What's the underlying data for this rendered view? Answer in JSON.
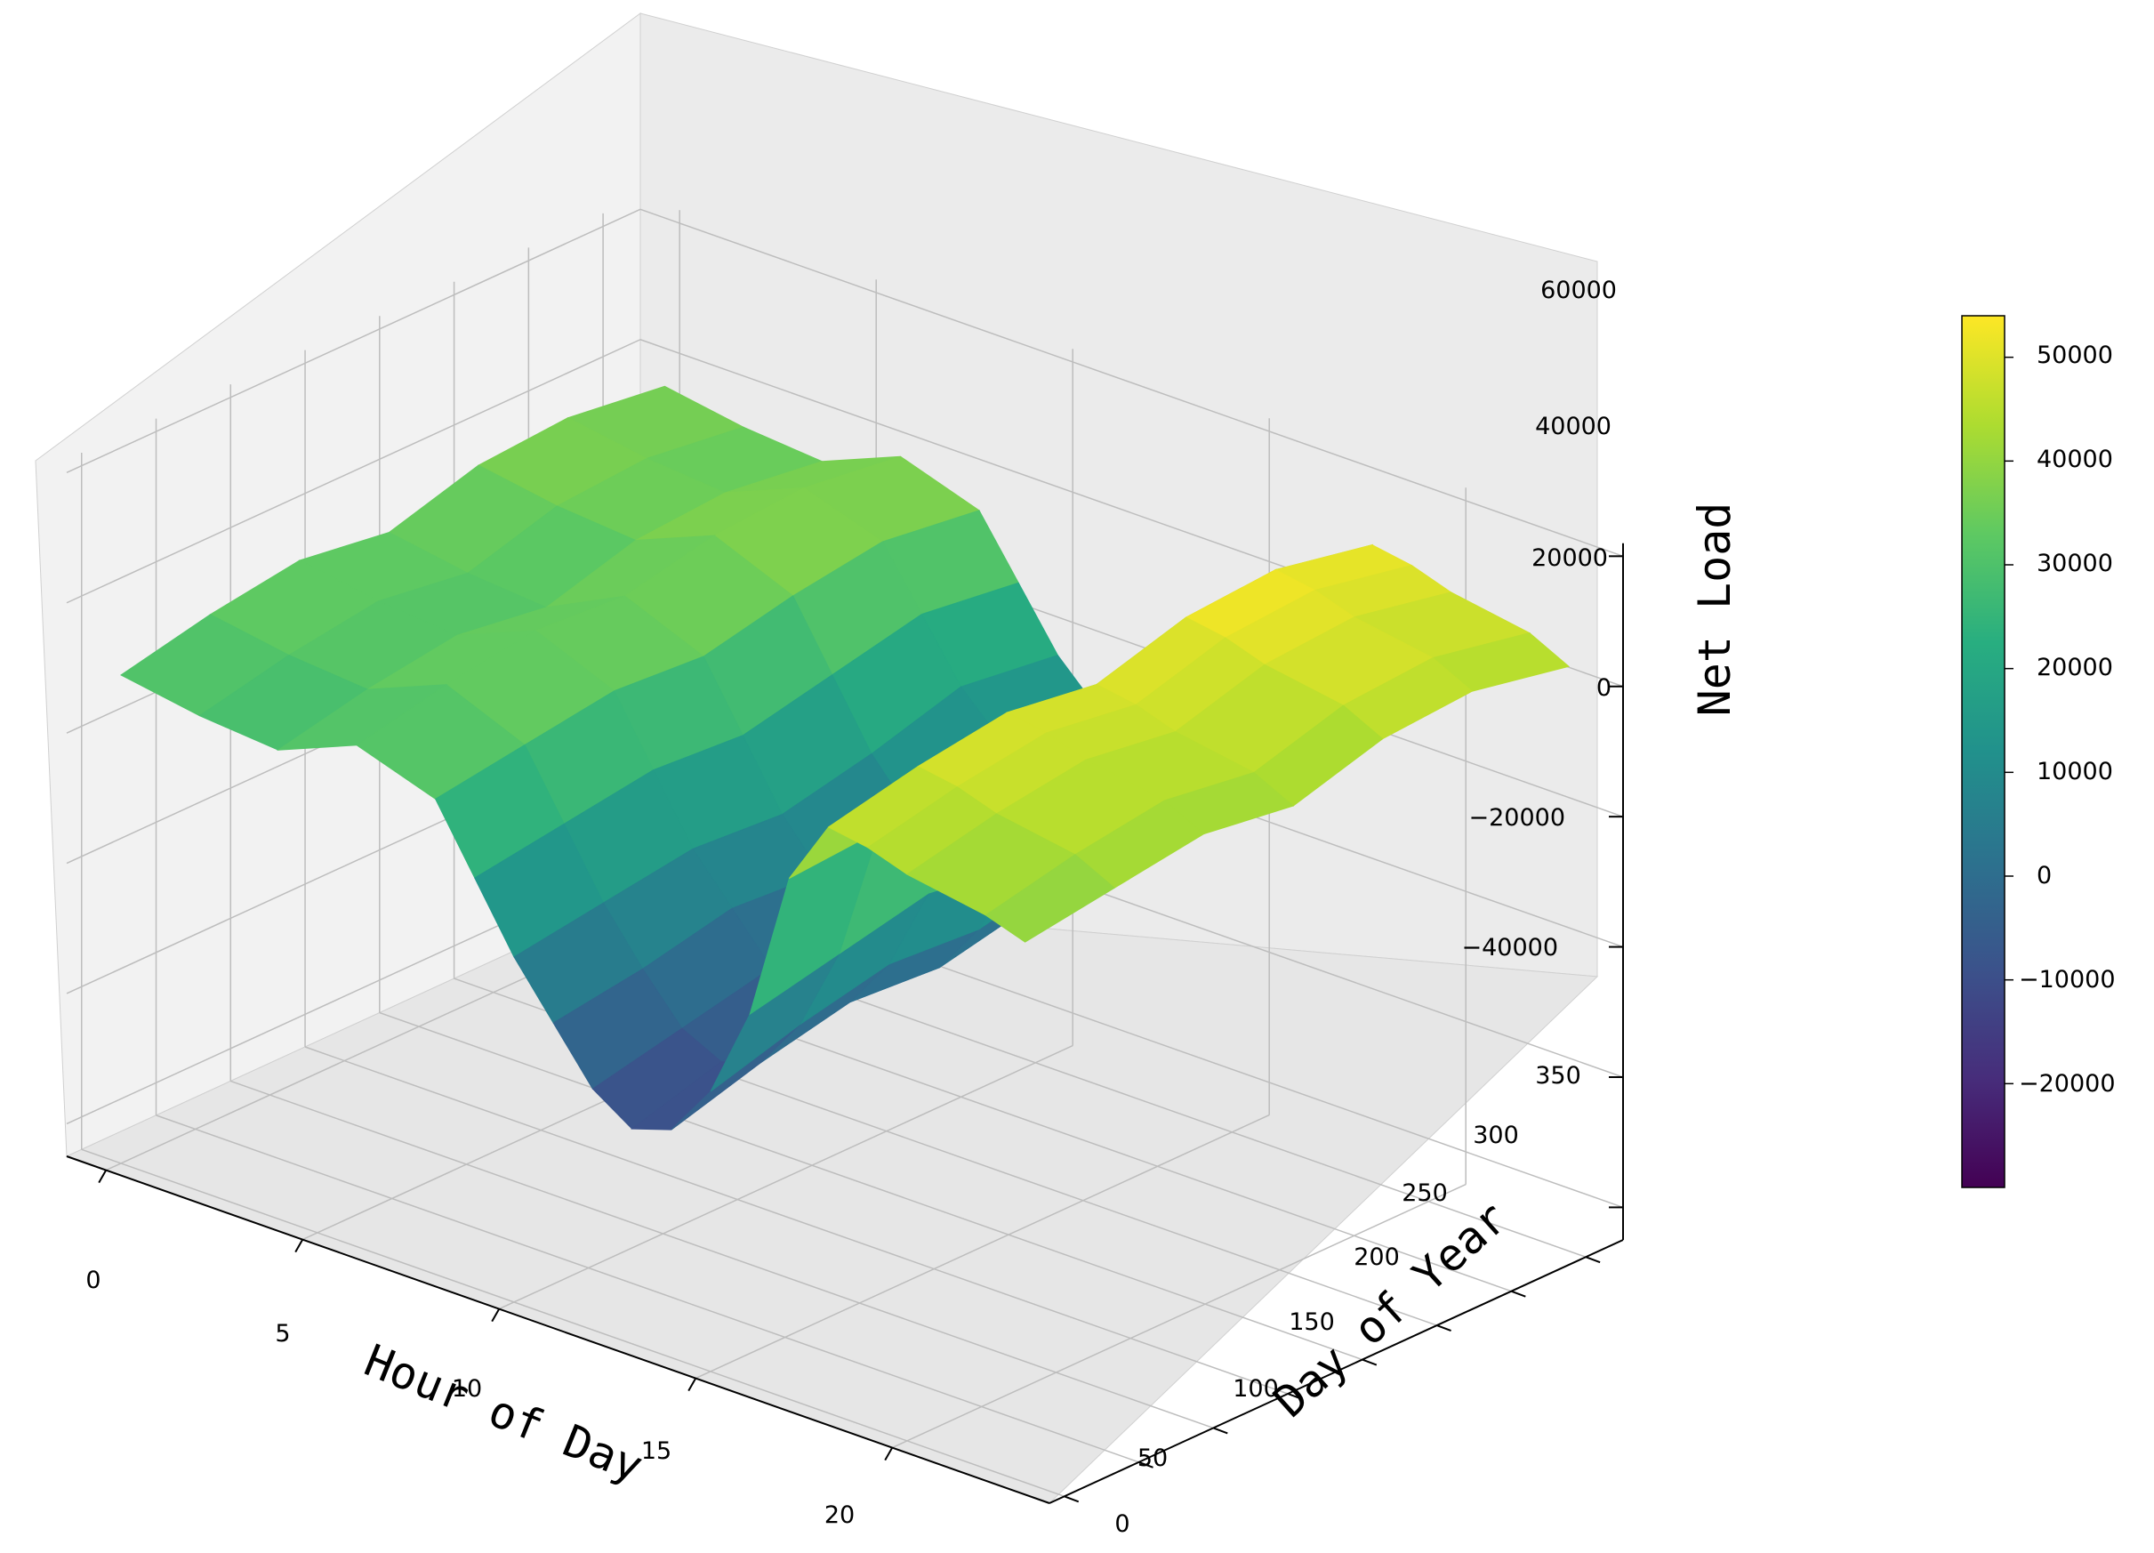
{
  "chart_data": {
    "type": "surface3d",
    "title": "",
    "colormap": "viridis",
    "xlabel": "Hour of Day",
    "ylabel": "Day of Year",
    "zlabel": "Net Load",
    "x_ticks": [
      "0",
      "5",
      "10",
      "15",
      "20"
    ],
    "y_ticks": [
      "0",
      "50",
      "100",
      "150",
      "200",
      "250",
      "300",
      "350"
    ],
    "z_ticks": [
      "−40000",
      "−20000",
      "0",
      "20000",
      "40000",
      "60000"
    ],
    "xlim": [
      -1,
      24
    ],
    "ylim": [
      -10,
      375
    ],
    "zlim": [
      -45000,
      62000
    ],
    "colorbar": {
      "min": -30000,
      "max": 54000,
      "ticks": [
        "−20000",
        "−10000",
        "0",
        "10000",
        "20000",
        "30000",
        "40000",
        "50000"
      ]
    },
    "series": [
      {
        "hours": [
          0,
          2,
          4,
          6,
          8,
          9,
          10,
          11,
          12,
          13,
          14,
          15,
          16,
          17,
          18,
          19,
          20,
          22,
          23
        ],
        "days": [
          0,
          60,
          120,
          180,
          240,
          300,
          365
        ],
        "net_load": [
          [
            30000,
            28000,
            27000,
            32000,
            28000,
            18000,
            8000,
            0,
            -8000,
            -12000,
            -10000,
            -2000,
            12000,
            35000,
            45000,
            44000,
            42000,
            40000,
            38000
          ],
          [
            33000,
            31000,
            30000,
            35000,
            30000,
            20000,
            10000,
            2000,
            -5000,
            -8000,
            -6000,
            2000,
            15000,
            36000,
            48000,
            47000,
            45000,
            43000,
            40000
          ],
          [
            35000,
            33000,
            32000,
            37000,
            32000,
            22000,
            12000,
            5000,
            -2000,
            -5000,
            -3000,
            5000,
            18000,
            38000,
            50000,
            49000,
            47000,
            45000,
            42000
          ],
          [
            33000,
            31000,
            30000,
            36000,
            31000,
            21000,
            11000,
            4000,
            -3000,
            -6000,
            -4000,
            4000,
            16000,
            36000,
            48000,
            47000,
            45000,
            43000,
            40000
          ],
          [
            37000,
            35000,
            34000,
            39000,
            34000,
            24000,
            14000,
            7000,
            0,
            -3000,
            -1000,
            7000,
            20000,
            38000,
            52000,
            51000,
            49000,
            47000,
            44000
          ],
          [
            38000,
            36000,
            35000,
            40000,
            36000,
            27000,
            18000,
            12000,
            6000,
            3000,
            5000,
            12000,
            24000,
            40000,
            53000,
            52000,
            50000,
            48000,
            45000
          ],
          [
            36000,
            34000,
            33000,
            38000,
            34000,
            25000,
            16000,
            10000,
            4000,
            1000,
            3000,
            10000,
            22000,
            38000,
            50000,
            49000,
            47000,
            45000,
            42000
          ]
        ]
      }
    ]
  }
}
